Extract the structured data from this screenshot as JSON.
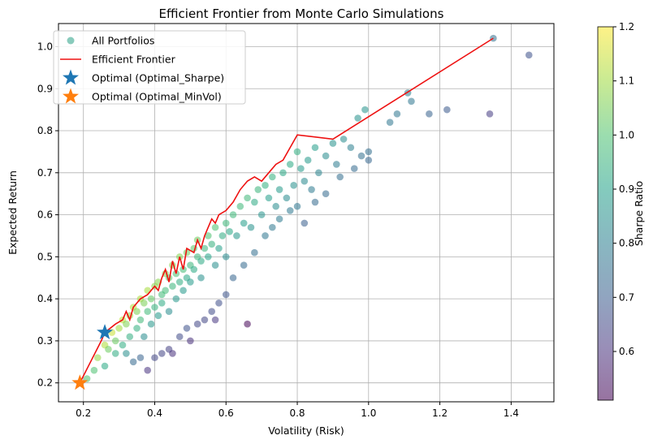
{
  "chart_data": {
    "type": "scatter",
    "title": "Efficient Frontier from Monte Carlo Simulations",
    "xlabel": "Volatility (Risk)",
    "ylabel": "Expected Return",
    "xlim": [
      0.13,
      1.52
    ],
    "ylim": [
      0.155,
      1.055
    ],
    "xticks": [
      0.2,
      0.4,
      0.6,
      0.8,
      1.0,
      1.2,
      1.4
    ],
    "xtick_labels": [
      "0.2",
      "0.4",
      "0.6",
      "0.8",
      "1.0",
      "1.2",
      "1.4"
    ],
    "yticks": [
      0.2,
      0.3,
      0.4,
      0.5,
      0.6,
      0.7,
      0.8,
      0.9,
      1.0
    ],
    "ytick_labels": [
      "0.2",
      "0.3",
      "0.4",
      "0.5",
      "0.6",
      "0.7",
      "0.8",
      "0.9",
      "1.0"
    ],
    "grid": true,
    "legend_position": "top-left",
    "legend": [
      {
        "label": "All Portfolios",
        "marker": "circle",
        "color": "#3ba990"
      },
      {
        "label": "Efficient Frontier",
        "marker": "line",
        "color": "#ee1111"
      },
      {
        "label": "Optimal (Optimal_Sharpe)",
        "marker": "star",
        "color": "#1f77b4"
      },
      {
        "label": "Optimal (Optimal_MinVol)",
        "marker": "star",
        "color": "#ff7f0e"
      }
    ],
    "colorbar": {
      "label": "Sharpe Ratio",
      "colormap": "viridis",
      "min": 0.51,
      "max": 1.2,
      "ticks": [
        0.6,
        0.7,
        0.8,
        0.9,
        1.0,
        1.1,
        1.2
      ],
      "tick_labels": [
        "0.6",
        "0.7",
        "0.8",
        "0.9",
        "1.0",
        "1.1",
        "1.2"
      ]
    },
    "series": [
      {
        "name": "All Portfolios",
        "kind": "scatter",
        "points": [
          [
            0.21,
            0.21
          ],
          [
            0.23,
            0.23
          ],
          [
            0.24,
            0.26
          ],
          [
            0.26,
            0.24
          ],
          [
            0.26,
            0.29
          ],
          [
            0.27,
            0.28
          ],
          [
            0.28,
            0.32
          ],
          [
            0.29,
            0.3
          ],
          [
            0.3,
            0.33
          ],
          [
            0.31,
            0.29
          ],
          [
            0.31,
            0.35
          ],
          [
            0.32,
            0.34
          ],
          [
            0.33,
            0.36
          ],
          [
            0.33,
            0.31
          ],
          [
            0.34,
            0.38
          ],
          [
            0.35,
            0.33
          ],
          [
            0.35,
            0.37
          ],
          [
            0.36,
            0.4
          ],
          [
            0.36,
            0.35
          ],
          [
            0.37,
            0.31
          ],
          [
            0.37,
            0.39
          ],
          [
            0.38,
            0.42
          ],
          [
            0.38,
            0.37
          ],
          [
            0.39,
            0.34
          ],
          [
            0.39,
            0.4
          ],
          [
            0.4,
            0.43
          ],
          [
            0.4,
            0.38
          ],
          [
            0.41,
            0.36
          ],
          [
            0.41,
            0.44
          ],
          [
            0.42,
            0.41
          ],
          [
            0.42,
            0.39
          ],
          [
            0.43,
            0.46
          ],
          [
            0.43,
            0.42
          ],
          [
            0.44,
            0.37
          ],
          [
            0.44,
            0.45
          ],
          [
            0.45,
            0.43
          ],
          [
            0.45,
            0.48
          ],
          [
            0.46,
            0.4
          ],
          [
            0.46,
            0.46
          ],
          [
            0.47,
            0.44
          ],
          [
            0.47,
            0.5
          ],
          [
            0.48,
            0.42
          ],
          [
            0.48,
            0.47
          ],
          [
            0.49,
            0.45
          ],
          [
            0.49,
            0.51
          ],
          [
            0.5,
            0.48
          ],
          [
            0.5,
            0.44
          ],
          [
            0.51,
            0.52
          ],
          [
            0.51,
            0.47
          ],
          [
            0.52,
            0.5
          ],
          [
            0.52,
            0.54
          ],
          [
            0.53,
            0.49
          ],
          [
            0.53,
            0.45
          ],
          [
            0.54,
            0.52
          ],
          [
            0.55,
            0.55
          ],
          [
            0.55,
            0.5
          ],
          [
            0.56,
            0.53
          ],
          [
            0.57,
            0.48
          ],
          [
            0.57,
            0.57
          ],
          [
            0.58,
            0.52
          ],
          [
            0.59,
            0.55
          ],
          [
            0.6,
            0.58
          ],
          [
            0.6,
            0.5
          ],
          [
            0.61,
            0.56
          ],
          [
            0.62,
            0.6
          ],
          [
            0.63,
            0.55
          ],
          [
            0.64,
            0.62
          ],
          [
            0.65,
            0.58
          ],
          [
            0.66,
            0.64
          ],
          [
            0.67,
            0.57
          ],
          [
            0.68,
            0.63
          ],
          [
            0.69,
            0.66
          ],
          [
            0.7,
            0.6
          ],
          [
            0.71,
            0.67
          ],
          [
            0.72,
            0.64
          ],
          [
            0.73,
            0.69
          ],
          [
            0.74,
            0.62
          ],
          [
            0.75,
            0.66
          ],
          [
            0.76,
            0.7
          ],
          [
            0.77,
            0.64
          ],
          [
            0.78,
            0.72
          ],
          [
            0.79,
            0.67
          ],
          [
            0.8,
            0.75
          ],
          [
            0.81,
            0.71
          ],
          [
            0.82,
            0.68
          ],
          [
            0.83,
            0.73
          ],
          [
            0.84,
            0.66
          ],
          [
            0.85,
            0.76
          ],
          [
            0.86,
            0.7
          ],
          [
            0.88,
            0.74
          ],
          [
            0.9,
            0.77
          ],
          [
            0.91,
            0.72
          ],
          [
            0.93,
            0.78
          ],
          [
            0.95,
            0.76
          ],
          [
            0.97,
            0.83
          ],
          [
            0.99,
            0.85
          ],
          [
            1.0,
            0.75
          ],
          [
            1.0,
            0.73
          ],
          [
            1.06,
            0.82
          ],
          [
            1.08,
            0.84
          ],
          [
            1.11,
            0.89
          ],
          [
            1.12,
            0.87
          ],
          [
            1.17,
            0.84
          ],
          [
            1.22,
            0.85
          ],
          [
            1.34,
            0.84
          ],
          [
            1.35,
            1.02
          ],
          [
            1.45,
            0.98
          ],
          [
            0.29,
            0.27
          ],
          [
            0.32,
            0.27
          ],
          [
            0.34,
            0.25
          ],
          [
            0.36,
            0.26
          ],
          [
            0.38,
            0.23
          ],
          [
            0.4,
            0.26
          ],
          [
            0.42,
            0.27
          ],
          [
            0.44,
            0.28
          ],
          [
            0.45,
            0.27
          ],
          [
            0.47,
            0.31
          ],
          [
            0.49,
            0.33
          ],
          [
            0.5,
            0.3
          ],
          [
            0.52,
            0.34
          ],
          [
            0.54,
            0.35
          ],
          [
            0.56,
            0.37
          ],
          [
            0.57,
            0.35
          ],
          [
            0.58,
            0.39
          ],
          [
            0.6,
            0.41
          ],
          [
            0.62,
            0.45
          ],
          [
            0.65,
            0.48
          ],
          [
            0.66,
            0.34
          ],
          [
            0.68,
            0.51
          ],
          [
            0.71,
            0.55
          ],
          [
            0.73,
            0.57
          ],
          [
            0.75,
            0.59
          ],
          [
            0.78,
            0.61
          ],
          [
            0.8,
            0.62
          ],
          [
            0.82,
            0.58
          ],
          [
            0.85,
            0.63
          ],
          [
            0.88,
            0.65
          ],
          [
            0.92,
            0.69
          ],
          [
            0.96,
            0.71
          ],
          [
            0.98,
            0.74
          ]
        ]
      },
      {
        "name": "Efficient Frontier",
        "kind": "line",
        "points": [
          [
            0.19,
            0.2
          ],
          [
            0.22,
            0.25
          ],
          [
            0.25,
            0.3
          ],
          [
            0.26,
            0.32
          ],
          [
            0.29,
            0.34
          ],
          [
            0.31,
            0.35
          ],
          [
            0.32,
            0.37
          ],
          [
            0.33,
            0.35
          ],
          [
            0.34,
            0.38
          ],
          [
            0.36,
            0.4
          ],
          [
            0.38,
            0.41
          ],
          [
            0.39,
            0.42
          ],
          [
            0.4,
            0.43
          ],
          [
            0.41,
            0.42
          ],
          [
            0.42,
            0.45
          ],
          [
            0.43,
            0.47
          ],
          [
            0.44,
            0.44
          ],
          [
            0.45,
            0.49
          ],
          [
            0.46,
            0.46
          ],
          [
            0.47,
            0.5
          ],
          [
            0.48,
            0.47
          ],
          [
            0.49,
            0.52
          ],
          [
            0.51,
            0.51
          ],
          [
            0.52,
            0.54
          ],
          [
            0.53,
            0.52
          ],
          [
            0.54,
            0.55
          ],
          [
            0.55,
            0.57
          ],
          [
            0.56,
            0.59
          ],
          [
            0.57,
            0.58
          ],
          [
            0.58,
            0.6
          ],
          [
            0.6,
            0.61
          ],
          [
            0.62,
            0.63
          ],
          [
            0.64,
            0.66
          ],
          [
            0.66,
            0.68
          ],
          [
            0.68,
            0.69
          ],
          [
            0.7,
            0.68
          ],
          [
            0.72,
            0.7
          ],
          [
            0.74,
            0.72
          ],
          [
            0.76,
            0.73
          ],
          [
            0.78,
            0.76
          ],
          [
            0.8,
            0.79
          ],
          [
            0.9,
            0.78
          ],
          [
            1.35,
            1.02
          ]
        ]
      },
      {
        "name": "Optimal (Optimal_Sharpe)",
        "kind": "marker",
        "points": [
          [
            0.26,
            0.32
          ]
        ],
        "color": "#1f77b4"
      },
      {
        "name": "Optimal (Optimal_MinVol)",
        "kind": "marker",
        "points": [
          [
            0.19,
            0.2
          ]
        ],
        "color": "#ff7f0e"
      }
    ]
  }
}
